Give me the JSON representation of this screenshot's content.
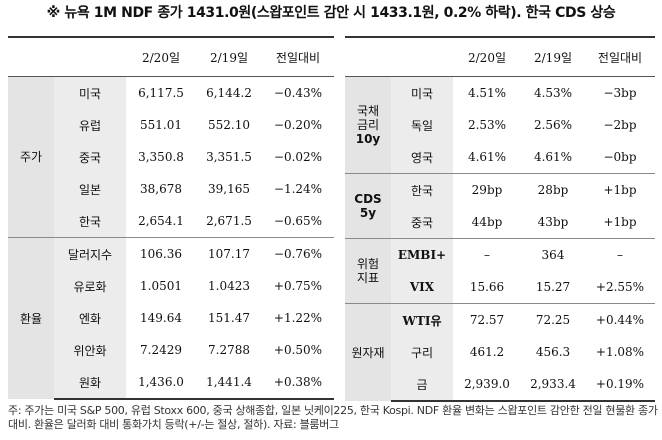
{
  "title": "※ 뉴욕 1M NDF 종가 1431.0원(스왑포인트 감안 시 1433.1원, 0.2% 하락). 한국 CDS 상승",
  "left": {
    "headers": [
      "",
      "",
      "2/20일",
      "2/19일",
      "전일대비"
    ],
    "groups": [
      {
        "label": "주가",
        "rows": [
          {
            "name": "미국",
            "d1": "6,117.5",
            "d2": "6,144.2",
            "chg": "−0.43%"
          },
          {
            "name": "유럽",
            "d1": "551.01",
            "d2": "552.10",
            "chg": "−0.20%"
          },
          {
            "name": "중국",
            "d1": "3,350.8",
            "d2": "3,351.5",
            "chg": "−0.02%"
          },
          {
            "name": "일본",
            "d1": "38,678",
            "d2": "39,165",
            "chg": "−1.24%"
          },
          {
            "name": "한국",
            "d1": "2,654.1",
            "d2": "2,671.5",
            "chg": "−0.65%"
          }
        ]
      },
      {
        "label": "환율",
        "rows": [
          {
            "name": "달러지수",
            "d1": "106.36",
            "d2": "107.17",
            "chg": "−0.76%"
          },
          {
            "name": "유로화",
            "d1": "1.0501",
            "d2": "1.0423",
            "chg": "+0.75%"
          },
          {
            "name": "엔화",
            "d1": "149.64",
            "d2": "151.47",
            "chg": "+1.22%"
          },
          {
            "name": "위안화",
            "d1": "7.2429",
            "d2": "7.2788",
            "chg": "+0.50%"
          },
          {
            "name": "원화",
            "d1": "1,436.0",
            "d2": "1,441.4",
            "chg": "+0.38%"
          }
        ]
      }
    ]
  },
  "right": {
    "headers": [
      "",
      "",
      "2/20일",
      "2/19일",
      "전일대비"
    ],
    "groups": [
      {
        "label": [
          "국채",
          "금리",
          "10y"
        ],
        "rows": [
          {
            "name": "미국",
            "d1": "4.51%",
            "d2": "4.53%",
            "chg": "−3bp"
          },
          {
            "name": "독일",
            "d1": "2.53%",
            "d2": "2.56%",
            "chg": "−2bp"
          },
          {
            "name": "영국",
            "d1": "4.61%",
            "d2": "4.61%",
            "chg": "−0bp"
          }
        ]
      },
      {
        "label": [
          "CDS",
          "5y"
        ],
        "rows": [
          {
            "name": "한국",
            "d1": "29bp",
            "d2": "28bp",
            "chg": "+1bp"
          },
          {
            "name": "중국",
            "d1": "44bp",
            "d2": "43bp",
            "chg": "+1bp"
          }
        ]
      },
      {
        "label": [
          "위험",
          "지표"
        ],
        "rows": [
          {
            "name": "EMBI+",
            "d1": "–",
            "d2": "364",
            "chg": "–"
          },
          {
            "name": "VIX",
            "d1": "15.66",
            "d2": "15.27",
            "chg": "+2.55%"
          }
        ]
      },
      {
        "label": [
          "원자재"
        ],
        "rows": [
          {
            "name": "WTI유",
            "d1": "72.57",
            "d2": "72.25",
            "chg": "+0.44%"
          },
          {
            "name": "구리",
            "d1": "461.2",
            "d2": "456.3",
            "chg": "+1.08%"
          },
          {
            "name": "금",
            "d1": "2,939.0",
            "d2": "2,933.4",
            "chg": "+0.19%"
          }
        ]
      }
    ]
  },
  "note": "주: 주가는 미국 S&P 500, 유럽 Stoxx 600, 중국 상해종합, 일본 닛케이225, 한국 Kospi. NDF 환율 변화는 스왑포인트 감안한 전일 현물환 종가 대비. 환율은 달러화 대비 통화가치 등락(+/-는 절상, 절하). 자료: 블룸버그"
}
